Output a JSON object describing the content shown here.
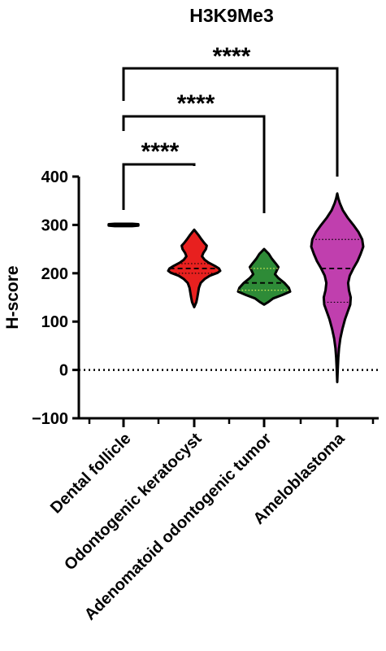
{
  "chart_data": {
    "type": "violin",
    "title": "H3K9Me3",
    "xlabel": "",
    "ylabel": "H-score",
    "ylim": [
      -100,
      400
    ],
    "yticks": [
      -100,
      0,
      100,
      200,
      300,
      400
    ],
    "reference_line": 0,
    "categories": [
      "Dental follicle",
      "Odontogenic keratocyst",
      "Adenomatoid odontogenic tumor",
      "Ameloblastoma"
    ],
    "colors": [
      "#ffffff",
      "#e8201f",
      "#2e8b37",
      "#c03fae"
    ],
    "groups": [
      {
        "name": "Dental follicle",
        "min": 298,
        "max": 302,
        "q1": 300,
        "median": 300,
        "q3": 300,
        "profile": [
          [
            298,
            0.6
          ],
          [
            299,
            1.0
          ],
          [
            300,
            1.0
          ],
          [
            301,
            1.0
          ],
          [
            302,
            0.6
          ]
        ]
      },
      {
        "name": "Odontogenic keratocyst",
        "min": 130,
        "max": 290,
        "q1": 200,
        "median": 210,
        "q3": 220,
        "profile": [
          [
            130,
            0.0
          ],
          [
            140,
            0.08
          ],
          [
            150,
            0.12
          ],
          [
            160,
            0.15
          ],
          [
            170,
            0.18
          ],
          [
            180,
            0.25
          ],
          [
            188,
            0.4
          ],
          [
            195,
            0.6
          ],
          [
            201,
            0.9
          ],
          [
            205,
            1.0
          ],
          [
            210,
            0.95
          ],
          [
            215,
            0.8
          ],
          [
            222,
            0.55
          ],
          [
            228,
            0.4
          ],
          [
            235,
            0.3
          ],
          [
            242,
            0.35
          ],
          [
            250,
            0.45
          ],
          [
            257,
            0.48
          ],
          [
            263,
            0.38
          ],
          [
            270,
            0.28
          ],
          [
            280,
            0.15
          ],
          [
            290,
            0.0
          ]
        ]
      },
      {
        "name": "Adenomatoid odontogenic tumor",
        "min": 135,
        "max": 250,
        "q1": 165,
        "median": 180,
        "q3": 210,
        "profile": [
          [
            135,
            0.0
          ],
          [
            140,
            0.15
          ],
          [
            148,
            0.35
          ],
          [
            155,
            0.7
          ],
          [
            162,
            1.0
          ],
          [
            170,
            0.95
          ],
          [
            180,
            0.78
          ],
          [
            190,
            0.55
          ],
          [
            198,
            0.42
          ],
          [
            205,
            0.48
          ],
          [
            213,
            0.55
          ],
          [
            220,
            0.45
          ],
          [
            230,
            0.3
          ],
          [
            240,
            0.18
          ],
          [
            250,
            0.0
          ]
        ]
      },
      {
        "name": "Ameloblastoma",
        "min": -25,
        "max": 365,
        "q1": 140,
        "median": 210,
        "q3": 270,
        "profile": [
          [
            -25,
            0.0
          ],
          [
            0,
            0.02
          ],
          [
            25,
            0.04
          ],
          [
            45,
            0.07
          ],
          [
            65,
            0.12
          ],
          [
            85,
            0.2
          ],
          [
            105,
            0.3
          ],
          [
            120,
            0.4
          ],
          [
            135,
            0.5
          ],
          [
            150,
            0.52
          ],
          [
            165,
            0.45
          ],
          [
            180,
            0.42
          ],
          [
            195,
            0.48
          ],
          [
            210,
            0.62
          ],
          [
            225,
            0.78
          ],
          [
            240,
            0.9
          ],
          [
            255,
            1.0
          ],
          [
            270,
            0.96
          ],
          [
            285,
            0.82
          ],
          [
            300,
            0.62
          ],
          [
            315,
            0.4
          ],
          [
            330,
            0.22
          ],
          [
            345,
            0.1
          ],
          [
            355,
            0.04
          ],
          [
            365,
            0.0
          ]
        ]
      }
    ],
    "comparisons": [
      {
        "from": 0,
        "to": 1,
        "label": "****"
      },
      {
        "from": 0,
        "to": 2,
        "label": "****"
      },
      {
        "from": 0,
        "to": 3,
        "label": "****"
      }
    ]
  }
}
